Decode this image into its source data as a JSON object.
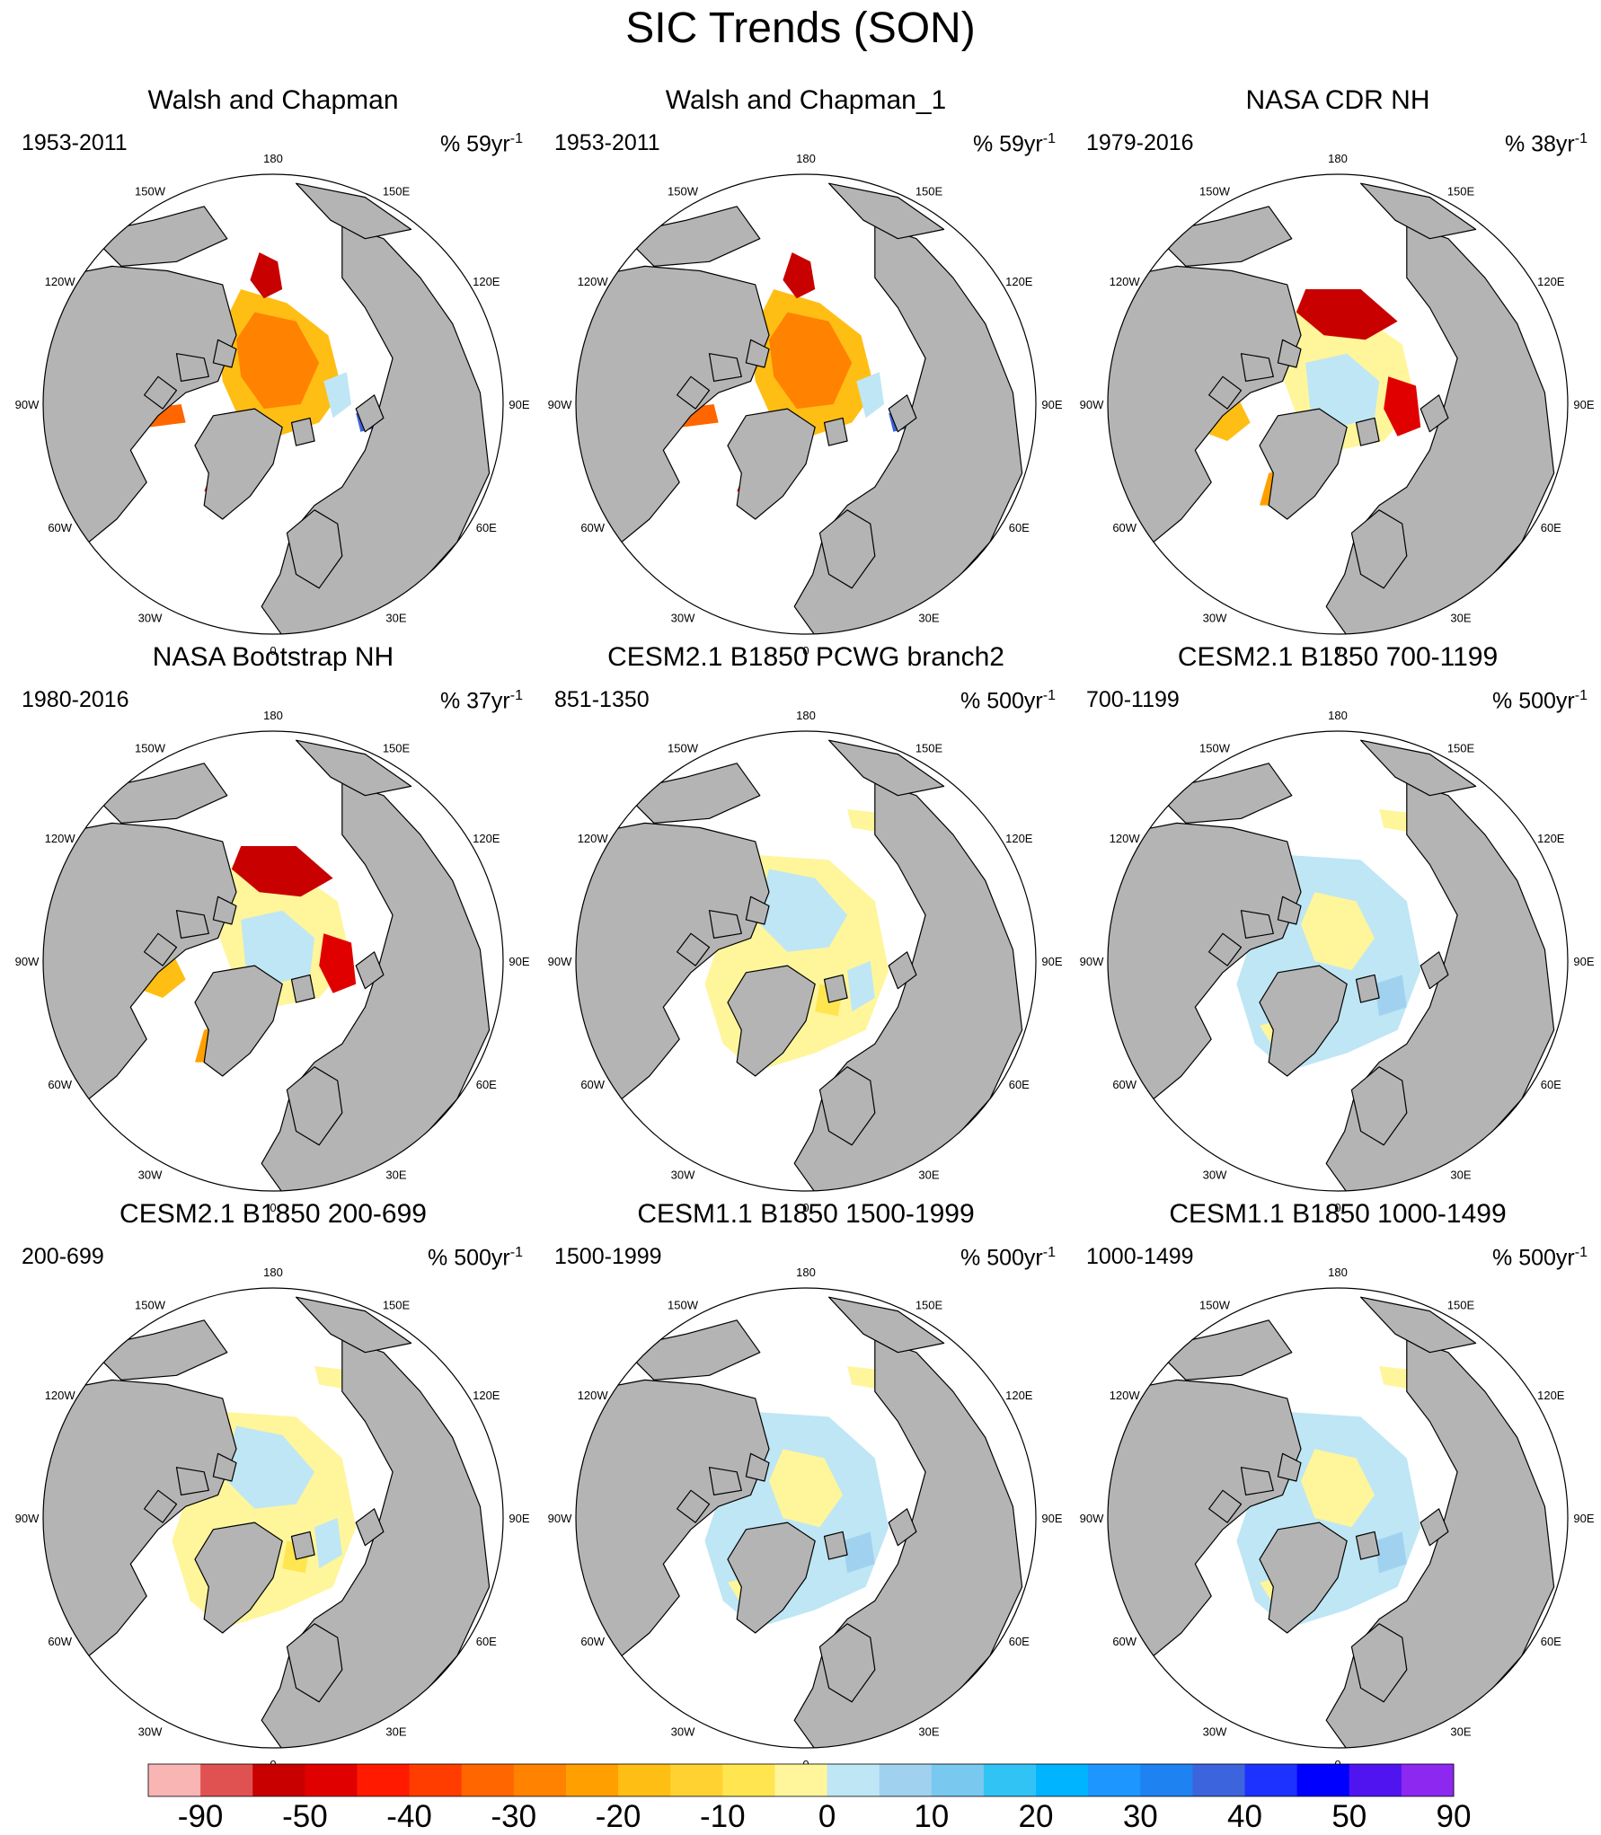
{
  "title": "SIC Trends (SON)",
  "panels": [
    {
      "title": "Walsh and Chapman",
      "period": "1953-2011",
      "units": "% 59yr",
      "exp": "-1",
      "pattern": "obs_early"
    },
    {
      "title": "Walsh and Chapman_1",
      "period": "1953-2011",
      "units": "% 59yr",
      "exp": "-1",
      "pattern": "obs_early"
    },
    {
      "title": "NASA CDR NH",
      "period": "1979-2016",
      "units": "% 38yr",
      "exp": "-1",
      "pattern": "obs_sat"
    },
    {
      "title": "NASA Bootstrap NH",
      "period": "1980-2016",
      "units": "% 37yr",
      "exp": "-1",
      "pattern": "obs_sat"
    },
    {
      "title": "CESM2.1 B1850 PCWG branch2",
      "period": "851-1350",
      "units": "% 500yr",
      "exp": "-1",
      "pattern": "model_pos"
    },
    {
      "title": "CESM2.1 B1850 700-1199",
      "period": "700-1199",
      "units": "% 500yr",
      "exp": "-1",
      "pattern": "model_neg"
    },
    {
      "title": "CESM2.1 B1850 200-699",
      "period": "200-699",
      "units": "% 500yr",
      "exp": "-1",
      "pattern": "model_pos"
    },
    {
      "title": "CESM1.1 B1850 1500-1999",
      "period": "1500-1999",
      "units": "% 500yr",
      "exp": "-1",
      "pattern": "model_neg"
    },
    {
      "title": "CESM1.1 B1850 1000-1499",
      "period": "1000-1499",
      "units": "% 500yr",
      "exp": "-1",
      "pattern": "model_neg"
    }
  ],
  "lon_labels": [
    "180",
    "150E",
    "120E",
    "90E",
    "60E",
    "30E",
    "0",
    "30W",
    "60W",
    "90W",
    "120W",
    "150W"
  ],
  "chart_data": {
    "type": "heatmap",
    "title": "SIC Trends (SON)",
    "colorbar": {
      "colors": [
        "#f9b4b4",
        "#e05252",
        "#c80000",
        "#e00000",
        "#ff1a00",
        "#ff3d00",
        "#ff6600",
        "#ff8200",
        "#ffa000",
        "#ffbe14",
        "#ffd232",
        "#ffe650",
        "#fff59b",
        "#bee6f5",
        "#a0d2f0",
        "#78c8f0",
        "#32c3f5",
        "#00b4ff",
        "#1e96ff",
        "#1e82f0",
        "#3c64dc",
        "#1e32ff",
        "#0000ff",
        "#5014f0",
        "#8c28f0"
      ],
      "tick_labels": [
        "-90",
        "-50",
        "-40",
        "-30",
        "-20",
        "-10",
        "0",
        "10",
        "20",
        "30",
        "40",
        "50",
        "90"
      ]
    },
    "colors": {
      "land": "#b4b4b4",
      "ocean": "#ffffff",
      "coast": "#000000"
    }
  }
}
